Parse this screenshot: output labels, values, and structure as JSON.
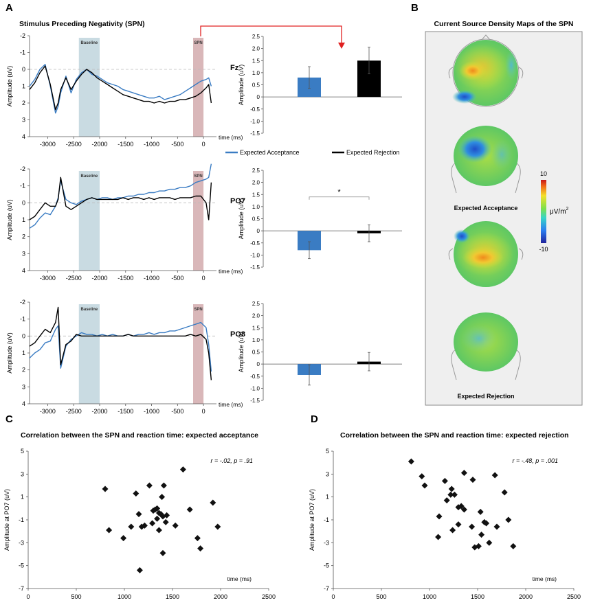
{
  "panel_labels": {
    "a": "A",
    "b": "B",
    "c": "C",
    "d": "D"
  },
  "colors": {
    "acceptance": "#3a7cc3",
    "rejection": "#000000",
    "baseline_band": "#c9dbe2",
    "spn_band": "#d9b7b9",
    "arrow": "#e02020",
    "axis": "#555555"
  },
  "panel_a": {
    "title": "Stimulus Preceding Negativity (SPN)",
    "legend": {
      "acceptance": "Expected Acceptance",
      "rejection": "Expected Rejection"
    },
    "band_labels": {
      "baseline": "Baseline",
      "spn": "SPN"
    }
  },
  "panel_b": {
    "title": "Current Source Density Maps of the SPN",
    "map_labels": {
      "acceptance": "Expected Acceptance",
      "rejection": "Expected Rejection"
    },
    "colorbar": {
      "max": "10",
      "min": "-10",
      "unit": "μV/m",
      "unit_exp": "2"
    }
  },
  "chart_data": [
    {
      "type": "line",
      "name": "erp-fz",
      "channel": "Fz",
      "xlabel": "time (ms)",
      "ylabel": "Amplitude (uV)",
      "xlim": [
        -3350,
        250
      ],
      "ylim": [
        -2,
        4
      ],
      "y_inverted": true,
      "xticks": [
        -3000,
        -2500,
        -2000,
        -1500,
        -1000,
        -500,
        0
      ],
      "yticks": [
        -2,
        -1,
        0,
        1,
        2,
        3,
        4
      ],
      "xtick_labels": [
        "-3000",
        "-2500",
        "-2000",
        "-1500",
        "-1000",
        "-500",
        "0"
      ],
      "ytick_labels": [
        "-2",
        "-1",
        "0",
        "1",
        "2",
        "3",
        "4"
      ],
      "bands": [
        {
          "name": "Baseline",
          "range": [
            -2400,
            -2000
          ]
        },
        {
          "name": "SPN",
          "range": [
            -200,
            0
          ]
        }
      ],
      "x": [
        -3350,
        -3250,
        -3150,
        -3050,
        -2950,
        -2850,
        -2800,
        -2750,
        -2650,
        -2550,
        -2450,
        -2350,
        -2250,
        -2150,
        -2050,
        -1950,
        -1850,
        -1750,
        -1650,
        -1550,
        -1450,
        -1350,
        -1250,
        -1150,
        -1050,
        -950,
        -850,
        -750,
        -650,
        -550,
        -450,
        -350,
        -250,
        -150,
        -50,
        50,
        100,
        150
      ],
      "series": [
        {
          "name": "Expected Acceptance",
          "values": [
            1.0,
            0.6,
            0.0,
            -0.3,
            1.0,
            2.6,
            2.2,
            1.4,
            0.4,
            1.4,
            0.6,
            0.2,
            0.0,
            0.3,
            0.4,
            0.6,
            0.8,
            0.9,
            1.0,
            1.2,
            1.3,
            1.4,
            1.5,
            1.6,
            1.7,
            1.7,
            1.6,
            1.8,
            1.7,
            1.6,
            1.5,
            1.3,
            1.1,
            0.9,
            0.7,
            0.6,
            0.5,
            1.0
          ]
        },
        {
          "name": "Expected Rejection",
          "values": [
            1.2,
            0.8,
            0.2,
            -0.2,
            0.9,
            2.4,
            2.0,
            1.2,
            0.5,
            1.2,
            0.7,
            0.3,
            0.0,
            0.2,
            0.5,
            0.7,
            0.9,
            1.1,
            1.3,
            1.5,
            1.6,
            1.7,
            1.8,
            1.9,
            1.9,
            2.0,
            1.9,
            2.0,
            1.9,
            1.9,
            1.8,
            1.8,
            1.7,
            1.6,
            1.4,
            1.1,
            0.9,
            2.0
          ]
        }
      ]
    },
    {
      "type": "bar",
      "name": "bar-fz",
      "categories": [
        "Expected Acceptance",
        "Expected Rejection"
      ],
      "values": [
        0.8,
        1.5
      ],
      "errors": [
        0.45,
        0.55
      ],
      "ylabel": "Amplitude (uV)",
      "ylim": [
        -1.5,
        2.5
      ],
      "y_inverted": false,
      "yticks": [
        -1.5,
        -1.0,
        -0.5,
        0,
        0.5,
        1.0,
        1.5,
        2.0,
        2.5
      ],
      "ytick_labels": [
        "-1.5",
        "-1.0",
        "-0.5",
        "0",
        "0.5",
        "1.0",
        "1.5",
        "2.0",
        "2.5"
      ],
      "annotation": ""
    },
    {
      "type": "line",
      "name": "erp-po7",
      "channel": "PO7",
      "xlabel": "time (ms)",
      "ylabel": "Amplitude (uV)",
      "xlim": [
        -3350,
        250
      ],
      "ylim": [
        -2,
        4
      ],
      "y_inverted": true,
      "xticks": [
        -3000,
        -2500,
        -2000,
        -1500,
        -1000,
        -500,
        0
      ],
      "yticks": [
        -2,
        -1,
        0,
        1,
        2,
        3,
        4
      ],
      "xtick_labels": [
        "-3000",
        "-2500",
        "-2000",
        "-1500",
        "-1000",
        "-500",
        "0"
      ],
      "ytick_labels": [
        "-2",
        "-1",
        "0",
        "1",
        "2",
        "3",
        "4"
      ],
      "bands": [
        {
          "name": "Baseline",
          "range": [
            -2400,
            -2000
          ]
        },
        {
          "name": "SPN",
          "range": [
            -200,
            0
          ]
        }
      ],
      "x": [
        -3350,
        -3250,
        -3150,
        -3050,
        -2950,
        -2850,
        -2800,
        -2750,
        -2650,
        -2550,
        -2450,
        -2350,
        -2250,
        -2150,
        -2050,
        -1950,
        -1850,
        -1750,
        -1650,
        -1550,
        -1450,
        -1350,
        -1250,
        -1150,
        -1050,
        -950,
        -850,
        -750,
        -650,
        -550,
        -450,
        -350,
        -250,
        -150,
        -50,
        50,
        100,
        150
      ],
      "series": [
        {
          "name": "Expected Acceptance",
          "values": [
            1.5,
            1.3,
            0.9,
            0.6,
            0.7,
            0.2,
            -0.3,
            -1.3,
            -0.2,
            0.0,
            0.1,
            -0.1,
            -0.2,
            -0.3,
            -0.2,
            -0.3,
            -0.3,
            -0.2,
            -0.3,
            -0.3,
            -0.4,
            -0.4,
            -0.5,
            -0.5,
            -0.6,
            -0.6,
            -0.7,
            -0.7,
            -0.8,
            -0.8,
            -0.9,
            -0.9,
            -1.0,
            -1.2,
            -1.3,
            -1.4,
            -1.5,
            -2.3
          ]
        },
        {
          "name": "Expected Rejection",
          "values": [
            1.0,
            0.8,
            0.4,
            0.0,
            0.2,
            0.2,
            -0.2,
            -1.5,
            0.2,
            0.4,
            0.2,
            0.0,
            -0.2,
            -0.3,
            -0.2,
            -0.2,
            -0.2,
            -0.2,
            -0.2,
            -0.3,
            -0.2,
            -0.3,
            -0.3,
            -0.2,
            -0.3,
            -0.2,
            -0.3,
            -0.3,
            -0.3,
            -0.2,
            -0.3,
            -0.3,
            -0.3,
            -0.4,
            -0.4,
            0.0,
            1.0,
            -1.2
          ]
        }
      ]
    },
    {
      "type": "bar",
      "name": "bar-po7",
      "categories": [
        "Expected Acceptance",
        "Expected Rejection"
      ],
      "values": [
        -0.8,
        -0.1
      ],
      "errors": [
        0.35,
        0.35
      ],
      "ylabel": "Amplitude (uV)",
      "ylim": [
        -1.5,
        2.5
      ],
      "y_inverted": false,
      "yticks": [
        -1.5,
        -1.0,
        -0.5,
        0,
        0.5,
        1.0,
        1.5,
        2.0,
        2.5
      ],
      "ytick_labels": [
        "-1.5",
        "-1.0",
        "-0.5",
        "0",
        "0.5",
        "1.0",
        "1.5",
        "2.0",
        "2.5"
      ],
      "annotation": "*"
    },
    {
      "type": "line",
      "name": "erp-po8",
      "channel": "PO8",
      "xlabel": "time (ms)",
      "ylabel": "Amplitude (uV)",
      "xlim": [
        -3350,
        250
      ],
      "ylim": [
        -2,
        4
      ],
      "y_inverted": true,
      "xticks": [
        -3000,
        -2500,
        -2000,
        -1500,
        -1000,
        -500,
        0
      ],
      "yticks": [
        -2,
        -1,
        0,
        1,
        2,
        3,
        4
      ],
      "xtick_labels": [
        "-3000",
        "-2500",
        "-2000",
        "-1500",
        "-1000",
        "-500",
        "0"
      ],
      "ytick_labels": [
        "-2",
        "-1",
        "0",
        "1",
        "2",
        "3",
        "4"
      ],
      "bands": [
        {
          "name": "Baseline",
          "range": [
            -2400,
            -2000
          ]
        },
        {
          "name": "SPN",
          "range": [
            -200,
            0
          ]
        }
      ],
      "x": [
        -3350,
        -3250,
        -3150,
        -3050,
        -2950,
        -2850,
        -2800,
        -2750,
        -2650,
        -2550,
        -2450,
        -2350,
        -2250,
        -2150,
        -2050,
        -1950,
        -1850,
        -1750,
        -1650,
        -1550,
        -1450,
        -1350,
        -1250,
        -1150,
        -1050,
        -950,
        -850,
        -750,
        -650,
        -550,
        -450,
        -350,
        -250,
        -150,
        -50,
        50,
        100,
        150
      ],
      "series": [
        {
          "name": "Expected Acceptance",
          "values": [
            1.3,
            1.0,
            0.8,
            0.4,
            0.3,
            -0.4,
            -0.6,
            1.9,
            0.6,
            0.2,
            0.0,
            -0.2,
            -0.1,
            -0.1,
            0.0,
            -0.1,
            0.0,
            -0.1,
            0.0,
            0.0,
            -0.1,
            0.0,
            -0.1,
            -0.1,
            -0.2,
            -0.1,
            -0.2,
            -0.2,
            -0.3,
            -0.3,
            -0.4,
            -0.5,
            -0.6,
            -0.7,
            -0.8,
            -0.5,
            0.5,
            2.1
          ]
        },
        {
          "name": "Expected Rejection",
          "values": [
            0.6,
            0.4,
            0.0,
            -0.4,
            -0.2,
            -0.8,
            -1.7,
            1.7,
            0.5,
            0.3,
            -0.1,
            0.0,
            0.0,
            0.0,
            0.0,
            0.0,
            0.0,
            0.0,
            0.0,
            0.0,
            -0.1,
            0.0,
            0.0,
            0.0,
            0.0,
            0.0,
            0.0,
            0.0,
            0.0,
            0.0,
            0.0,
            0.0,
            -0.1,
            0.0,
            -0.1,
            0.2,
            1.0,
            2.6
          ]
        }
      ]
    },
    {
      "type": "bar",
      "name": "bar-po8",
      "categories": [
        "Expected Acceptance",
        "Expected Rejection"
      ],
      "values": [
        -0.45,
        0.1
      ],
      "errors": [
        0.42,
        0.38
      ],
      "ylabel": "Amplitude (uV)",
      "ylim": [
        -1.5,
        2.5
      ],
      "y_inverted": false,
      "yticks": [
        -1.5,
        -1.0,
        -0.5,
        0,
        0.5,
        1.0,
        1.5,
        2.0,
        2.5
      ],
      "ytick_labels": [
        "-1.5",
        "-1.0",
        "-0.5",
        "0",
        "0.5",
        "1.0",
        "1.5",
        "2.0",
        "2.5"
      ],
      "annotation": ""
    },
    {
      "type": "scatter",
      "name": "scatter-acceptance",
      "title": "Correlation between the SPN and reaction time: expected acceptance",
      "stat": "r = -.02, p = .91",
      "xlabel": "time (ms)",
      "ylabel": "Amplitude at PO7 (uV)",
      "xlim": [
        0,
        2500
      ],
      "ylim": [
        -7,
        5
      ],
      "xticks": [
        0,
        500,
        1000,
        1500,
        2000,
        2500
      ],
      "yticks": [
        -7,
        -5,
        -3,
        -1,
        1,
        3,
        5
      ],
      "xtick_labels": [
        "0",
        "500",
        "1000",
        "1500",
        "2000",
        "2500"
      ],
      "ytick_labels": [
        "-7",
        "-5",
        "-3",
        "-1",
        "1",
        "3",
        "5"
      ],
      "points": [
        [
          800,
          1.7
        ],
        [
          840,
          -1.9
        ],
        [
          990,
          -2.6
        ],
        [
          1070,
          -1.6
        ],
        [
          1120,
          1.3
        ],
        [
          1150,
          -0.5
        ],
        [
          1160,
          -5.4
        ],
        [
          1180,
          -1.6
        ],
        [
          1210,
          -1.5
        ],
        [
          1260,
          2.0
        ],
        [
          1290,
          -1.3
        ],
        [
          1300,
          -0.2
        ],
        [
          1320,
          -0.1
        ],
        [
          1340,
          -0.9
        ],
        [
          1340,
          0.0
        ],
        [
          1360,
          -0.4
        ],
        [
          1360,
          -1.9
        ],
        [
          1380,
          -0.5
        ],
        [
          1390,
          1.0
        ],
        [
          1400,
          -3.9
        ],
        [
          1400,
          -0.7
        ],
        [
          1410,
          2.0
        ],
        [
          1430,
          -1.2
        ],
        [
          1440,
          -0.6
        ],
        [
          1530,
          -1.5
        ],
        [
          1610,
          3.4
        ],
        [
          1680,
          -0.1
        ],
        [
          1760,
          -2.6
        ],
        [
          1790,
          -3.5
        ],
        [
          1920,
          0.5
        ],
        [
          1970,
          -1.6
        ]
      ]
    },
    {
      "type": "scatter",
      "name": "scatter-rejection",
      "title": "Correlation between the SPN and reaction time: expected rejection",
      "stat": "r = -.48, p = .001",
      "xlabel": "time (ms)",
      "ylabel": "Amplitude at PO7 (uV)",
      "xlim": [
        0,
        2500
      ],
      "ylim": [
        -7,
        5
      ],
      "xticks": [
        0,
        500,
        1000,
        1500,
        2000,
        2500
      ],
      "yticks": [
        -7,
        -5,
        -3,
        -1,
        1,
        3,
        5
      ],
      "xtick_labels": [
        "0",
        "500",
        "1000",
        "1500",
        "2000",
        "2500"
      ],
      "ytick_labels": [
        "-7",
        "-5",
        "-3",
        "-1",
        "1",
        "3",
        "5"
      ],
      "points": [
        [
          810,
          4.1
        ],
        [
          920,
          2.8
        ],
        [
          950,
          2.0
        ],
        [
          1090,
          -2.5
        ],
        [
          1100,
          -0.7
        ],
        [
          1160,
          2.4
        ],
        [
          1180,
          0.7
        ],
        [
          1220,
          1.2
        ],
        [
          1230,
          1.7
        ],
        [
          1240,
          -1.9
        ],
        [
          1260,
          1.2
        ],
        [
          1300,
          -1.4
        ],
        [
          1300,
          0.1
        ],
        [
          1330,
          0.2
        ],
        [
          1360,
          -0.1
        ],
        [
          1360,
          3.1
        ],
        [
          1440,
          -1.6
        ],
        [
          1450,
          2.5
        ],
        [
          1470,
          -3.4
        ],
        [
          1510,
          -3.3
        ],
        [
          1530,
          -0.3
        ],
        [
          1540,
          -2.3
        ],
        [
          1570,
          -1.2
        ],
        [
          1590,
          -1.3
        ],
        [
          1620,
          -3.0
        ],
        [
          1680,
          2.9
        ],
        [
          1700,
          -1.6
        ],
        [
          1780,
          1.4
        ],
        [
          1820,
          -1.0
        ],
        [
          1870,
          -3.3
        ]
      ]
    }
  ]
}
